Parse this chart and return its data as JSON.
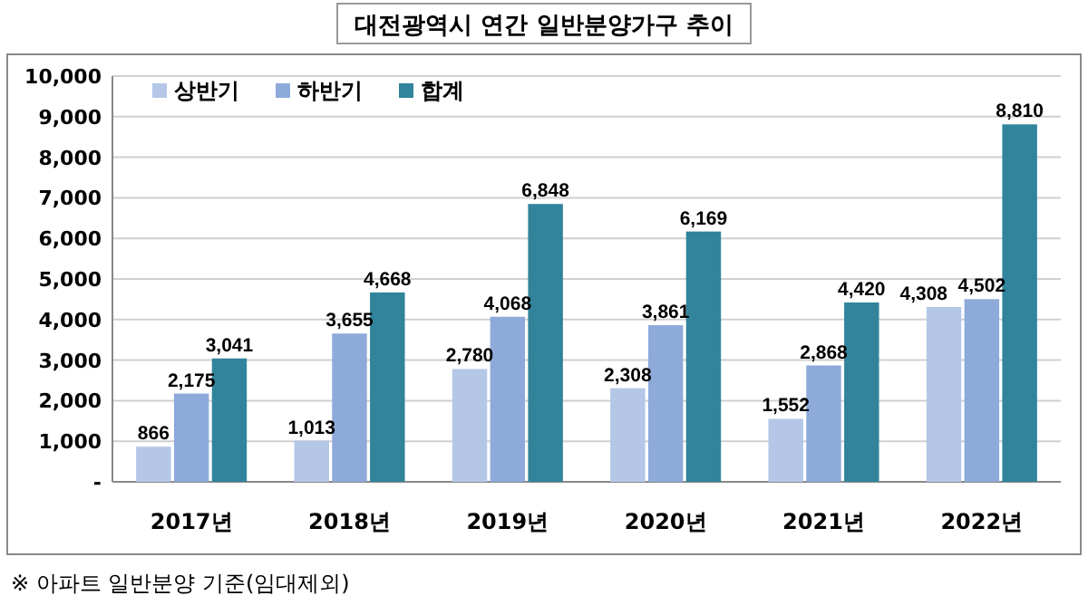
{
  "chart_data": {
    "type": "bar",
    "title": "대전광역시 연간 일반분양가구 추이",
    "categories": [
      "2017년",
      "2018년",
      "2019년",
      "2020년",
      "2021년",
      "2022년"
    ],
    "series": [
      {
        "name": "상반기",
        "color": "#b4c7e7",
        "values": [
          866,
          1013,
          2780,
          2308,
          1552,
          4308
        ],
        "value_labels": [
          "866",
          "1,013",
          "2,780",
          "2,308",
          "1,552",
          "4,308"
        ]
      },
      {
        "name": "하반기",
        "color": "#8eaadb",
        "values": [
          2175,
          3655,
          4068,
          3861,
          2868,
          4502
        ],
        "value_labels": [
          "2,175",
          "3,655",
          "4,068",
          "3,861",
          "2,868",
          "4,502"
        ]
      },
      {
        "name": "합계",
        "color": "#31849b",
        "values": [
          3041,
          4668,
          6848,
          6169,
          4420,
          8810
        ],
        "value_labels": [
          "3,041",
          "4,668",
          "6,848",
          "6,169",
          "4,420",
          "8,810"
        ]
      }
    ],
    "ylim": [
      0,
      10000
    ],
    "yticks": [
      {
        "value": 0,
        "label": "-"
      },
      {
        "value": 1000,
        "label": "1,000"
      },
      {
        "value": 2000,
        "label": "2,000"
      },
      {
        "value": 3000,
        "label": "3,000"
      },
      {
        "value": 4000,
        "label": "4,000"
      },
      {
        "value": 5000,
        "label": "5,000"
      },
      {
        "value": 6000,
        "label": "6,000"
      },
      {
        "value": 7000,
        "label": "7,000"
      },
      {
        "value": 8000,
        "label": "8,000"
      },
      {
        "value": 9000,
        "label": "9,000"
      },
      {
        "value": 10000,
        "label": "10,000"
      }
    ],
    "grid": "y",
    "legend": "top left",
    "annotations": [
      "※ 아파트 일반분양 기준(임대제외)"
    ]
  }
}
